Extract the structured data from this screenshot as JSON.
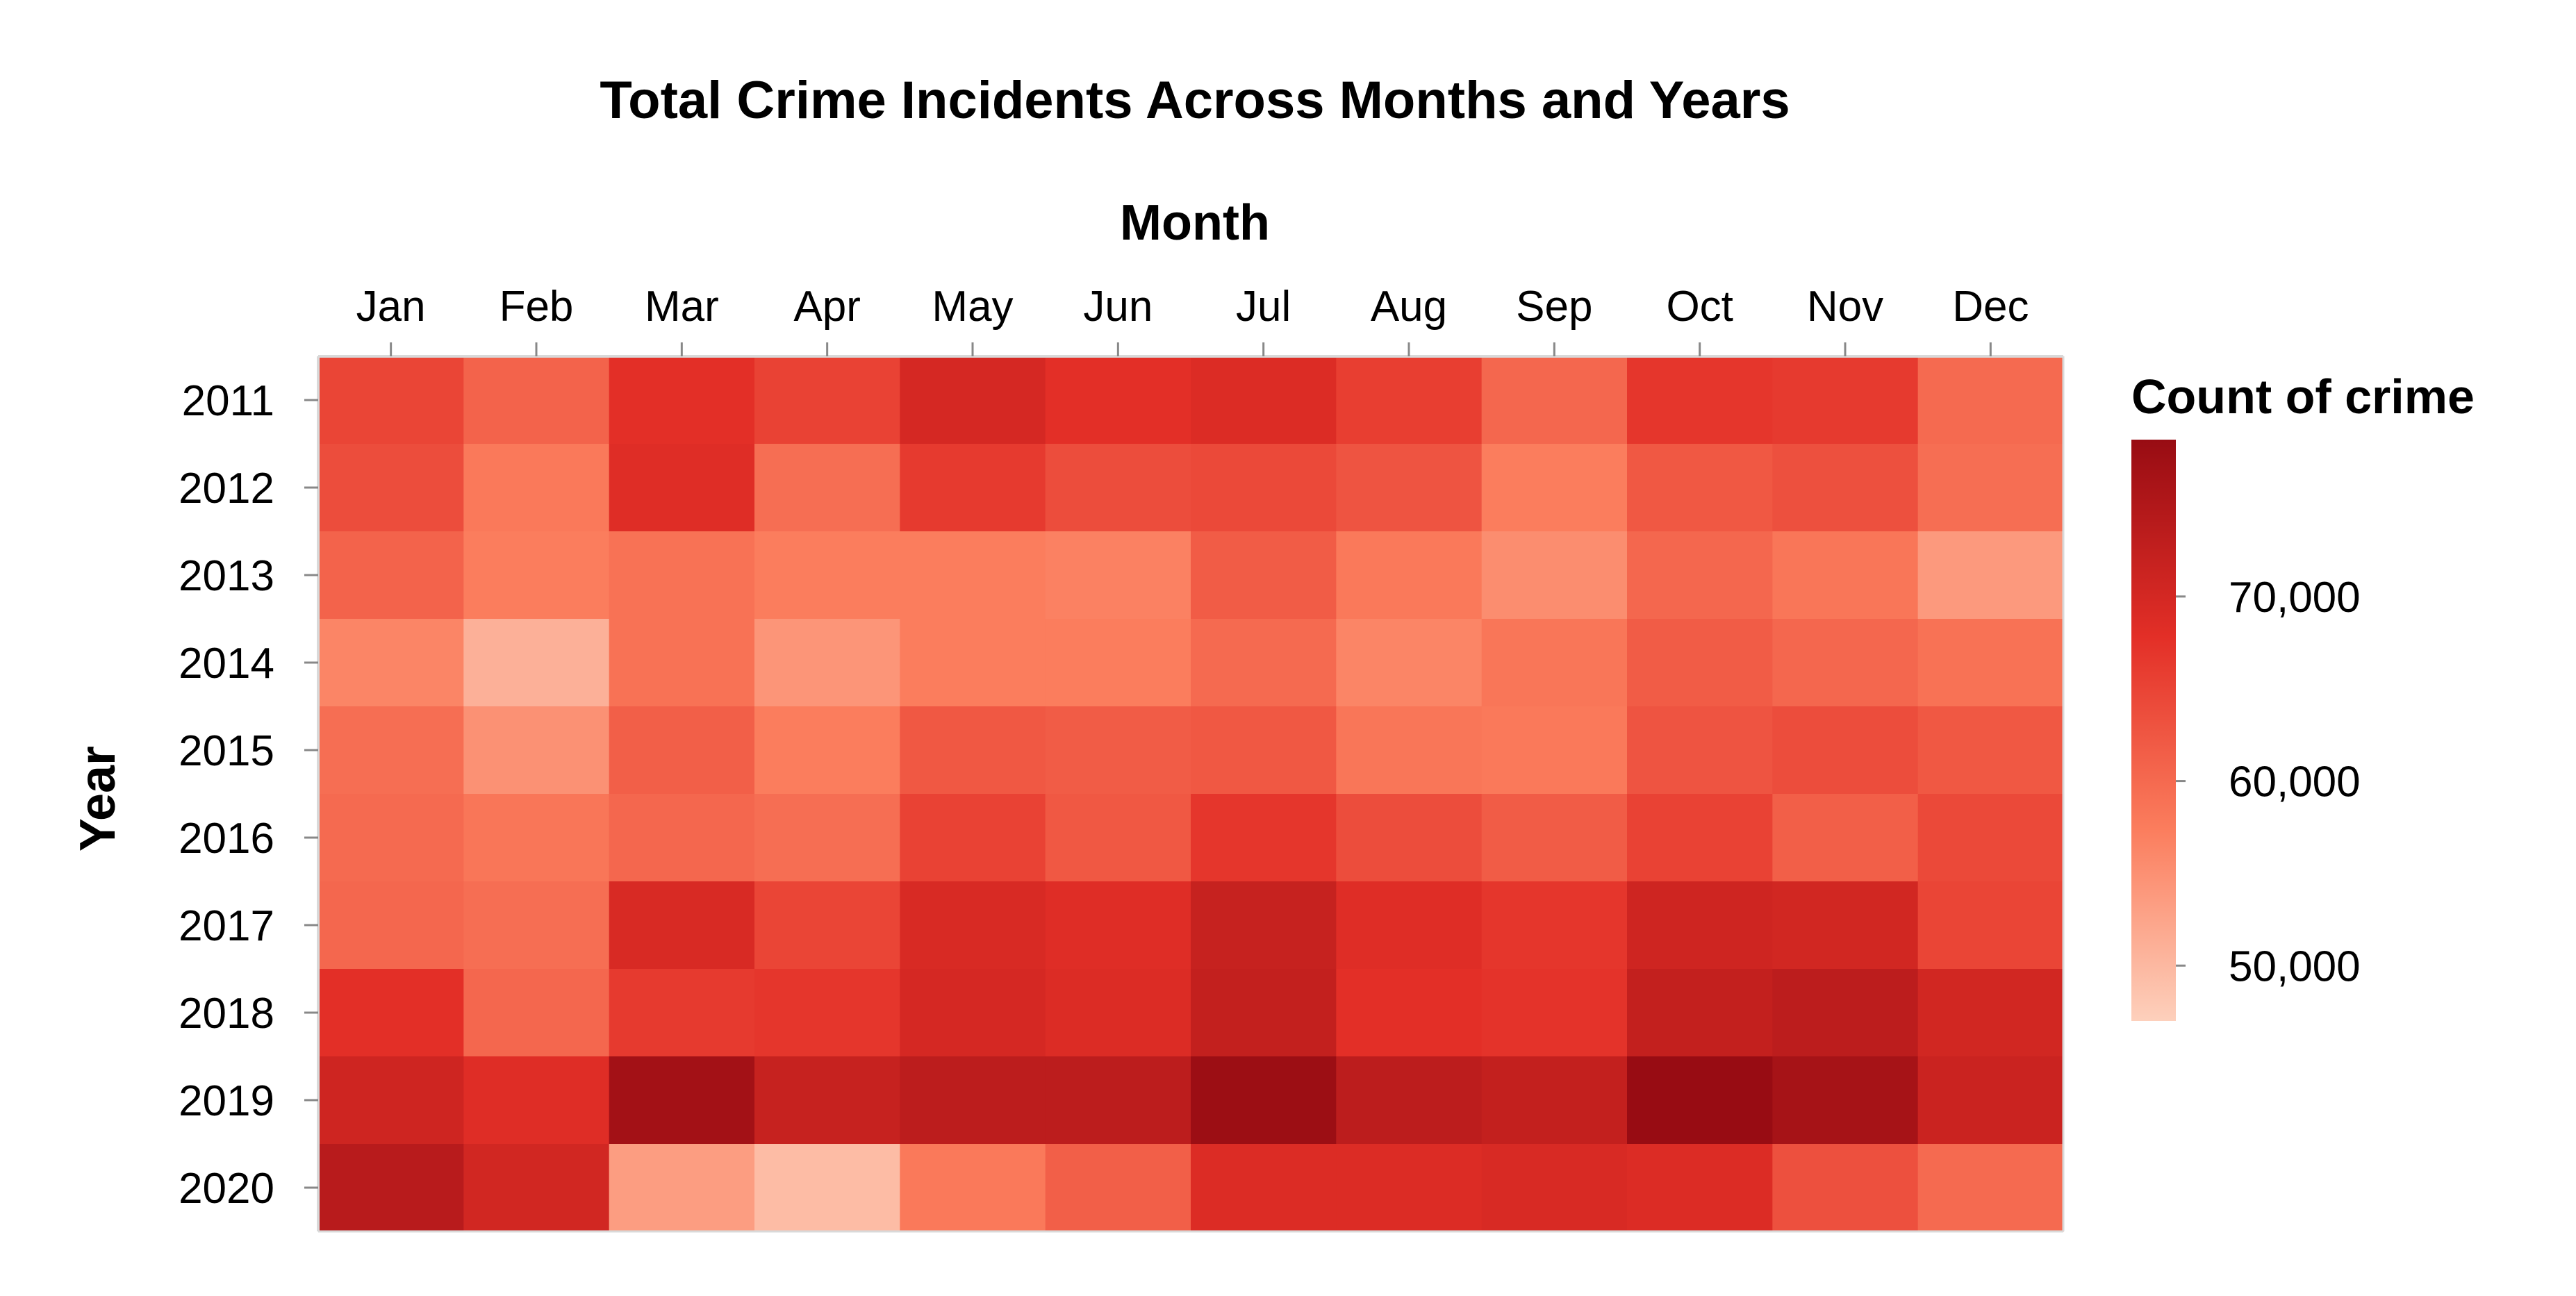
{
  "chart_data": {
    "type": "heatmap",
    "title": "Total Crime Incidents Across Months and Years",
    "xlabel": "Month",
    "ylabel": "Year",
    "x": [
      "Jan",
      "Feb",
      "Mar",
      "Apr",
      "May",
      "Jun",
      "Jul",
      "Aug",
      "Sep",
      "Oct",
      "Nov",
      "Dec"
    ],
    "y": [
      "2011",
      "2012",
      "2013",
      "2014",
      "2015",
      "2016",
      "2017",
      "2018",
      "2019",
      "2020"
    ],
    "values": [
      [
        65000,
        61000,
        68000,
        65500,
        70000,
        68000,
        69000,
        66000,
        60500,
        67000,
        66500,
        60000
      ],
      [
        64000,
        58000,
        68500,
        59500,
        66500,
        64000,
        64500,
        63000,
        57500,
        62500,
        63500,
        59500
      ],
      [
        61000,
        57500,
        59000,
        57500,
        57500,
        57000,
        62000,
        58000,
        55500,
        60500,
        58500,
        54000
      ],
      [
        56500,
        51000,
        59000,
        54500,
        57500,
        57500,
        60000,
        56500,
        58500,
        62000,
        60500,
        59000
      ],
      [
        59500,
        55000,
        61500,
        57500,
        62500,
        62000,
        62500,
        58500,
        58000,
        63000,
        64000,
        62500
      ],
      [
        60000,
        58500,
        60500,
        59500,
        65500,
        62500,
        67000,
        64000,
        62000,
        65500,
        61500,
        64500
      ],
      [
        60500,
        59500,
        69500,
        65000,
        69500,
        68500,
        72000,
        68500,
        67000,
        71000,
        70500,
        65000
      ],
      [
        68000,
        60500,
        66500,
        67000,
        70000,
        69000,
        72500,
        68000,
        67500,
        72500,
        73500,
        70500
      ],
      [
        71000,
        68500,
        77000,
        72000,
        73500,
        73500,
        78000,
        73500,
        72500,
        78500,
        76500,
        71500
      ],
      [
        74000,
        70500,
        53500,
        49500,
        58000,
        61500,
        69000,
        69000,
        69500,
        69000,
        63500,
        60000
      ]
    ],
    "color_scale": {
      "min": 47000,
      "max": 78500,
      "colors": [
        "#fdd0bc",
        "#fb7d5d",
        "#e32f27",
        "#980c13"
      ]
    },
    "legend": {
      "title": "Count of crime",
      "ticks": [
        50000,
        60000,
        70000
      ],
      "tick_labels": [
        "50,000",
        "60,000",
        "70,000"
      ],
      "placement": "right"
    },
    "x_axis_position": "top",
    "grid": false
  }
}
